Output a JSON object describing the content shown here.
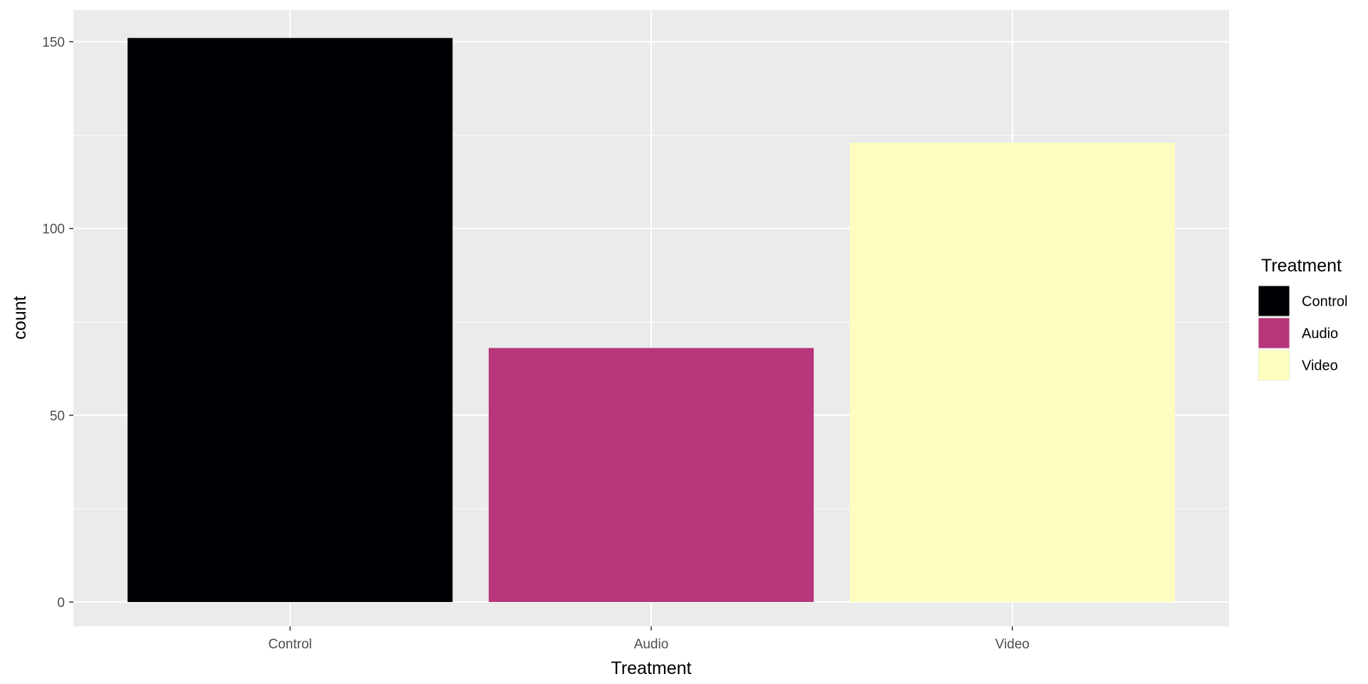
{
  "chart_data": {
    "type": "bar",
    "title": "",
    "xlabel": "Treatment",
    "ylabel": "count",
    "categories": [
      "Control",
      "Audio",
      "Video"
    ],
    "values": [
      151,
      68,
      123
    ],
    "colors": [
      "#000004",
      "#B63679",
      "#FCFDBF"
    ],
    "ylim": [
      -6.5,
      158.5
    ],
    "yticks": [
      0,
      50,
      100,
      150
    ],
    "grid": true,
    "panel_background": "#EBEBEB",
    "legend": {
      "title": "Treatment",
      "position": "right",
      "items": [
        "Control",
        "Audio",
        "Video"
      ]
    }
  }
}
